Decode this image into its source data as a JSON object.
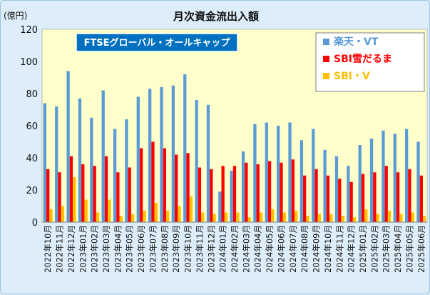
{
  "chart_data": {
    "type": "bar",
    "title": "月次資金流出入額",
    "unit_label": "(億円)",
    "annotation": "FTSEグローバル・オールキャップ",
    "ylim": [
      0,
      120
    ],
    "yticks": [
      0,
      20,
      40,
      60,
      80,
      100,
      120
    ],
    "grid": false,
    "legend_position": "top-right",
    "categories": [
      "2022年10月",
      "2022年11月",
      "2022年12月",
      "2023年01月",
      "2023年02月",
      "2023年03月",
      "2023年04月",
      "2023年05月",
      "2023年06月",
      "2023年07月",
      "2023年08月",
      "2023年09月",
      "2023年10月",
      "2023年11月",
      "2023年12月",
      "2024年01月",
      "2024年02月",
      "2024年03月",
      "2024年04月",
      "2024年05月",
      "2024年06月",
      "2024年07月",
      "2024年08月",
      "2024年09月",
      "2024年10月",
      "2024年11月",
      "2024年12月",
      "2025年01月",
      "2025年02月",
      "2025年03月",
      "2025年04月",
      "2025年05月",
      "2025年06月"
    ],
    "series": [
      {
        "name": "楽天・VT",
        "color": "#5b9bd5",
        "values": [
          74,
          72,
          94,
          77,
          65,
          82,
          58,
          64,
          78,
          83,
          84,
          85,
          92,
          76,
          73,
          19,
          32,
          44,
          61,
          62,
          60,
          62,
          51,
          58,
          45,
          41,
          35,
          48,
          52,
          57,
          55,
          58,
          50
        ]
      },
      {
        "name": "SBI雪だるま",
        "color": "#ff0000",
        "values": [
          33,
          31,
          41,
          36,
          35,
          41,
          31,
          34,
          46,
          50,
          46,
          42,
          43,
          34,
          33,
          35,
          35,
          37,
          36,
          38,
          37,
          39,
          29,
          33,
          29,
          27,
          25,
          30,
          31,
          35,
          31,
          33,
          29
        ]
      },
      {
        "name": "SBI・V",
        "color": "#ffc000",
        "values": [
          8,
          10,
          28,
          14,
          6,
          14,
          4,
          5,
          7,
          12,
          7,
          10,
          16,
          6,
          5,
          6,
          6,
          3,
          6,
          8,
          6,
          7,
          4,
          5,
          5,
          4,
          3,
          8,
          5,
          7,
          5,
          6,
          4
        ]
      }
    ]
  }
}
